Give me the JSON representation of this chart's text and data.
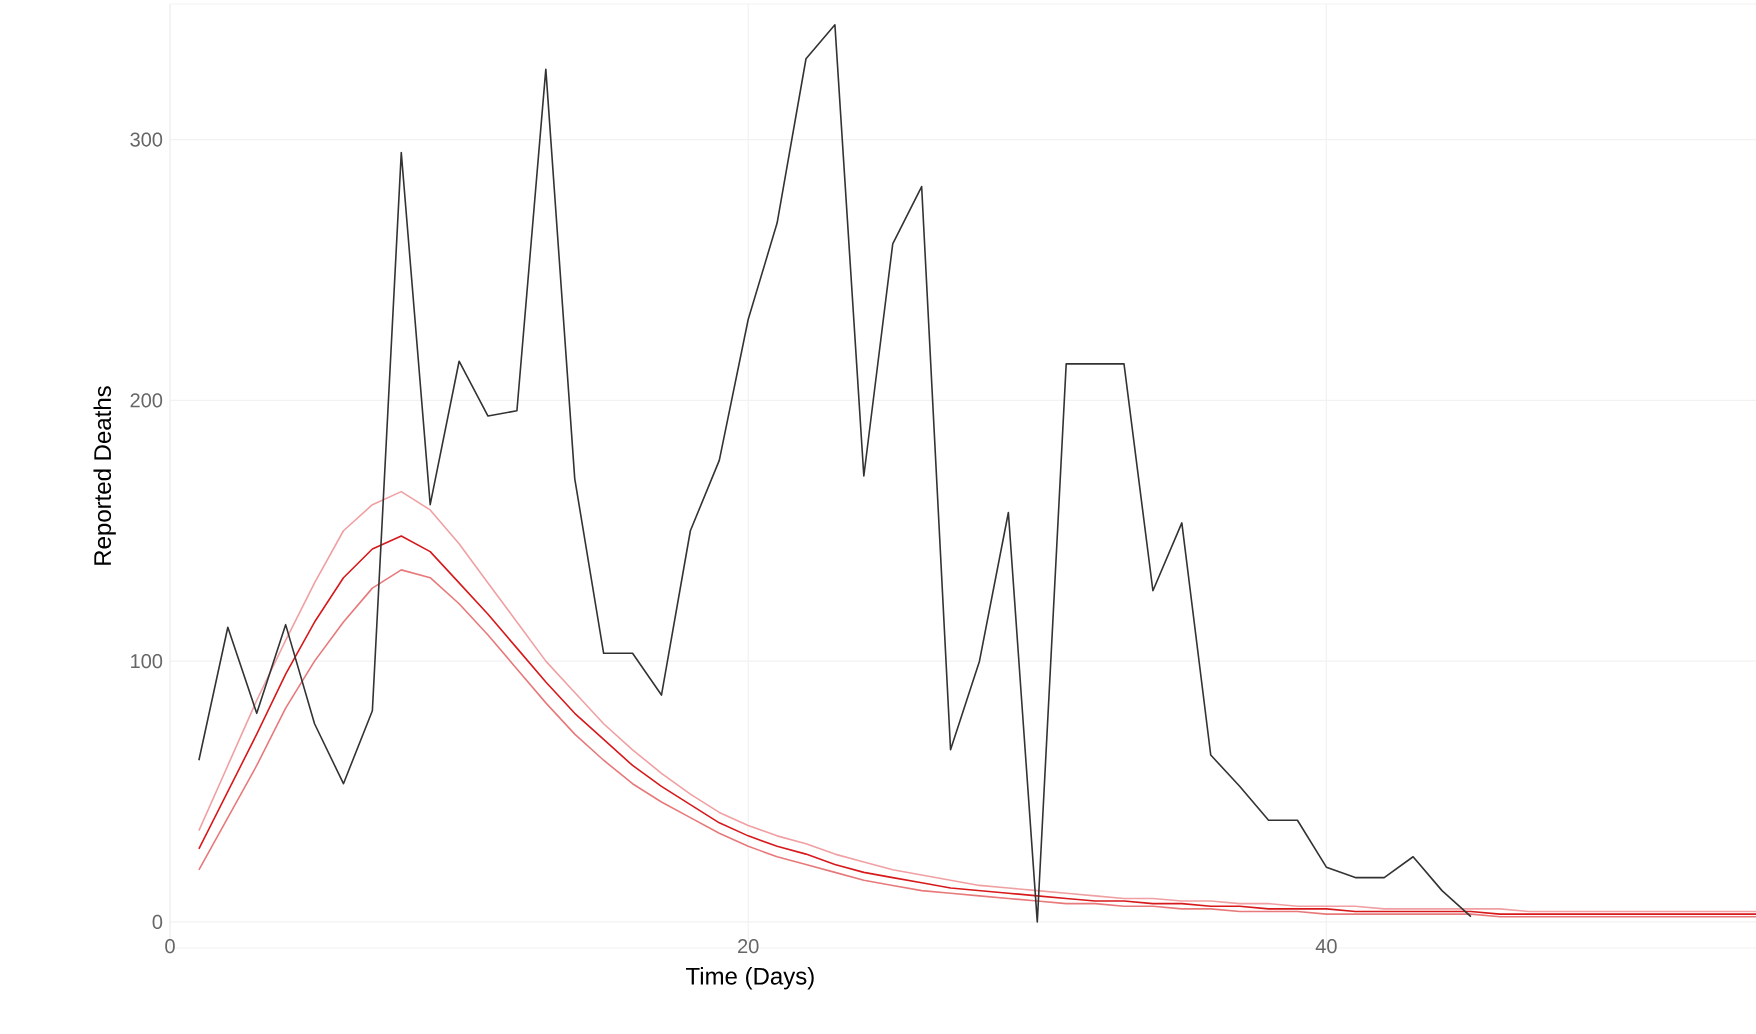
{
  "chart_data": {
    "type": "line",
    "xlabel": "Time (Days)",
    "ylabel": "Reported Deaths",
    "xlim": [
      0,
      55
    ],
    "ylim": [
      -10,
      352
    ],
    "xticks": [
      0,
      20,
      40
    ],
    "yticks": [
      0,
      100,
      200,
      300
    ],
    "grid": true,
    "marker": "none",
    "line_style": "solid",
    "series": [
      {
        "color": "#f0a0a2",
        "x": [
          1,
          2,
          3,
          4,
          5,
          6,
          7,
          8,
          9,
          10,
          11,
          12,
          13,
          14,
          15,
          16,
          17,
          18,
          19,
          20,
          21,
          22,
          23,
          24,
          25,
          26,
          27,
          28,
          29,
          30,
          31,
          32,
          33,
          34,
          35,
          36,
          37,
          38,
          39,
          40,
          41,
          42,
          43,
          44,
          45,
          46,
          47,
          48,
          49,
          50,
          51,
          52,
          53,
          54,
          55
        ],
        "values": [
          35,
          60,
          85,
          108,
          130,
          150,
          160,
          165,
          158,
          145,
          130,
          115,
          100,
          88,
          76,
          66,
          57,
          49,
          42,
          37,
          33,
          30,
          26,
          23,
          20,
          18,
          16,
          14,
          13,
          12,
          11,
          10,
          9,
          9,
          8,
          8,
          7,
          7,
          6,
          6,
          6,
          5,
          5,
          5,
          5,
          5,
          4,
          4,
          4,
          4,
          4,
          4,
          4,
          4,
          4
        ]
      },
      {
        "color": "#e8797b",
        "x": [
          1,
          2,
          3,
          4,
          5,
          6,
          7,
          8,
          9,
          10,
          11,
          12,
          13,
          14,
          15,
          16,
          17,
          18,
          19,
          20,
          21,
          22,
          23,
          24,
          25,
          26,
          27,
          28,
          29,
          30,
          31,
          32,
          33,
          34,
          35,
          36,
          37,
          38,
          39,
          40,
          41,
          42,
          43,
          44,
          45,
          46,
          47,
          48,
          49,
          50,
          51,
          52,
          53,
          54,
          55
        ],
        "values": [
          20,
          40,
          60,
          82,
          100,
          115,
          128,
          135,
          132,
          122,
          110,
          97,
          84,
          72,
          62,
          53,
          46,
          40,
          34,
          29,
          25,
          22,
          19,
          16,
          14,
          12,
          11,
          10,
          9,
          8,
          7,
          7,
          6,
          6,
          5,
          5,
          4,
          4,
          4,
          3,
          3,
          3,
          3,
          3,
          3,
          2,
          2,
          2,
          2,
          2,
          2,
          2,
          2,
          2,
          2
        ]
      },
      {
        "color": "#d7191c",
        "x": [
          1,
          2,
          3,
          4,
          5,
          6,
          7,
          8,
          9,
          10,
          11,
          12,
          13,
          14,
          15,
          16,
          17,
          18,
          19,
          20,
          21,
          22,
          23,
          24,
          25,
          26,
          27,
          28,
          29,
          30,
          31,
          32,
          33,
          34,
          35,
          36,
          37,
          38,
          39,
          40,
          41,
          42,
          43,
          44,
          45,
          46,
          47,
          48,
          49,
          50,
          51,
          52,
          53,
          54,
          55
        ],
        "values": [
          28,
          50,
          72,
          95,
          115,
          132,
          143,
          148,
          142,
          130,
          118,
          105,
          92,
          80,
          70,
          60,
          52,
          45,
          38,
          33,
          29,
          26,
          22,
          19,
          17,
          15,
          13,
          12,
          11,
          10,
          9,
          8,
          8,
          7,
          7,
          6,
          6,
          5,
          5,
          5,
          4,
          4,
          4,
          4,
          4,
          3,
          3,
          3,
          3,
          3,
          3,
          3,
          3,
          3,
          3
        ]
      },
      {
        "color": "#333333",
        "x": [
          1,
          2,
          3,
          4,
          5,
          6,
          7,
          8,
          9,
          10,
          11,
          12,
          13,
          14,
          15,
          16,
          17,
          18,
          19,
          20,
          21,
          22,
          23,
          24,
          25,
          26,
          27,
          28,
          29,
          30,
          31,
          32,
          33,
          34,
          35,
          36,
          37,
          38,
          39,
          40,
          41,
          42,
          43,
          44,
          45
        ],
        "values": [
          62,
          113,
          80,
          114,
          76,
          53,
          81,
          295,
          160,
          215,
          194,
          196,
          327,
          170,
          103,
          103,
          87,
          150,
          177,
          231,
          268,
          331,
          344,
          171,
          260,
          282,
          66,
          100,
          157,
          0,
          214,
          214,
          214,
          127,
          153,
          64,
          52,
          39,
          39,
          21,
          17,
          17,
          25,
          12,
          2
        ]
      }
    ]
  }
}
